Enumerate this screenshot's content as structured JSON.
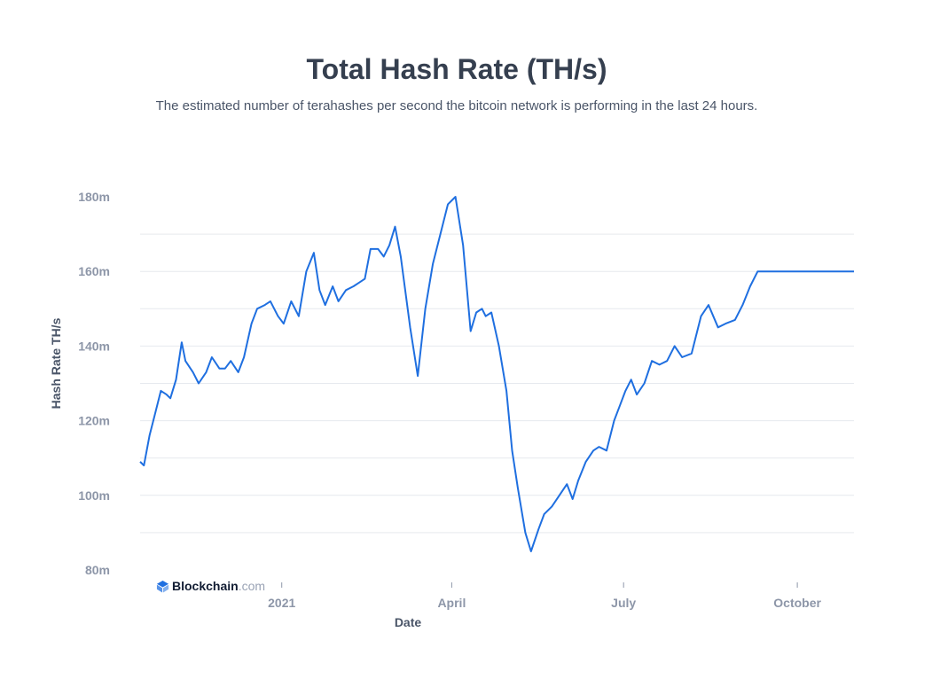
{
  "header": {
    "title": "Total Hash Rate (TH/s)",
    "subtitle": "The estimated number of terahashes per second the bitcoin network is performing in the last 24 hours."
  },
  "branding": {
    "name": "Blockchain",
    "tld": ".com",
    "accent": "#1f6fe0"
  },
  "chart_data": {
    "type": "line",
    "title": "Total Hash Rate (TH/s)",
    "xlabel": "Date",
    "ylabel": "Hash Rate TH/s",
    "ylim": [
      80000000,
      180000000
    ],
    "yticks": [
      80000000,
      100000000,
      120000000,
      140000000,
      160000000,
      180000000
    ],
    "ytick_labels": [
      "80m",
      "100m",
      "120m",
      "140m",
      "160m",
      "180m"
    ],
    "xticks": [
      {
        "date": "2021-01-01",
        "label": "2021"
      },
      {
        "date": "2021-04-01",
        "label": "April"
      },
      {
        "date": "2021-07-01",
        "label": "July"
      },
      {
        "date": "2021-10-01",
        "label": "October"
      }
    ],
    "grid": true,
    "color": "#1f6fe0",
    "series": [
      {
        "x": [
          "2020-10-18",
          "2020-10-20",
          "2020-10-23",
          "2020-10-26",
          "2020-10-29",
          "2020-11-01",
          "2020-11-03",
          "2020-11-06",
          "2020-11-09",
          "2020-11-11",
          "2020-11-15",
          "2020-11-18",
          "2020-11-22",
          "2020-11-25",
          "2020-11-29",
          "2020-12-02",
          "2020-12-05",
          "2020-12-09",
          "2020-12-12",
          "2020-12-16",
          "2020-12-19",
          "2020-12-23",
          "2020-12-26",
          "2020-12-30",
          "2021-01-02",
          "2021-01-06",
          "2021-01-10",
          "2021-01-14",
          "2021-01-18",
          "2021-01-21",
          "2021-01-24",
          "2021-01-28",
          "2021-01-31",
          "2021-02-04",
          "2021-02-08",
          "2021-02-11",
          "2021-02-14",
          "2021-02-17",
          "2021-02-21",
          "2021-02-24",
          "2021-02-27",
          "2021-03-02",
          "2021-03-05",
          "2021-03-10",
          "2021-03-14",
          "2021-03-18",
          "2021-03-22",
          "2021-03-26",
          "2021-03-30",
          "2021-04-03",
          "2021-04-07",
          "2021-04-11",
          "2021-04-14",
          "2021-04-17",
          "2021-04-19",
          "2021-04-22",
          "2021-04-26",
          "2021-04-30",
          "2021-05-03",
          "2021-05-06",
          "2021-05-10",
          "2021-05-13",
          "2021-05-17",
          "2021-05-20",
          "2021-05-24",
          "2021-05-28",
          "2021-06-01",
          "2021-06-04",
          "2021-06-07",
          "2021-06-11",
          "2021-06-15",
          "2021-06-18",
          "2021-06-22",
          "2021-06-26",
          "2021-06-29",
          "2021-07-02",
          "2021-07-05",
          "2021-07-08",
          "2021-07-12",
          "2021-07-16",
          "2021-07-20",
          "2021-07-24",
          "2021-07-28",
          "2021-08-01",
          "2021-08-06",
          "2021-08-11",
          "2021-08-15",
          "2021-08-20",
          "2021-08-24",
          "2021-08-29",
          "2021-09-02",
          "2021-09-06",
          "2021-09-10",
          "2021-09-14",
          "2021-09-18",
          "2021-09-22",
          "2021-09-26",
          "2021-09-30",
          "2021-10-03",
          "2021-10-06",
          "2021-10-09",
          "2021-10-12",
          "2021-10-15",
          "2021-10-18",
          "2021-10-21",
          "2021-10-24",
          "2021-10-27",
          "2021-10-31"
        ],
        "values": [
          109000000,
          108000000,
          116000000,
          122000000,
          128000000,
          127000000,
          126000000,
          131000000,
          141000000,
          136000000,
          133000000,
          130000000,
          133000000,
          137000000,
          134000000,
          134000000,
          136000000,
          133000000,
          137000000,
          146000000,
          150000000,
          151000000,
          152000000,
          148000000,
          146000000,
          152000000,
          148000000,
          160000000,
          165000000,
          155000000,
          151000000,
          156000000,
          152000000,
          155000000,
          156000000,
          157000000,
          158000000,
          166000000,
          166000000,
          164000000,
          167000000,
          172000000,
          164000000,
          145000000,
          132000000,
          150000000,
          162000000,
          170000000,
          178000000,
          180000000,
          167000000,
          144000000,
          149000000,
          150000000,
          148000000,
          149000000,
          140000000,
          128000000,
          112000000,
          102000000,
          90000000,
          85000000,
          91000000,
          95000000,
          97000000,
          100000000,
          103000000,
          99000000,
          104000000,
          109000000,
          112000000,
          113000000,
          112000000,
          120000000,
          124000000,
          128000000,
          131000000,
          127000000,
          130000000,
          136000000,
          135000000,
          136000000,
          140000000,
          137000000,
          138000000,
          148000000,
          151000000,
          145000000,
          146000000,
          147000000,
          151000000,
          156000000,
          160000000,
          160000000,
          160000000,
          160000000,
          160000000,
          160000000,
          160000000,
          160000000,
          160000000,
          160000000,
          160000000,
          160000000,
          160000000,
          160000000,
          160000000,
          160000000
        ]
      }
    ]
  }
}
